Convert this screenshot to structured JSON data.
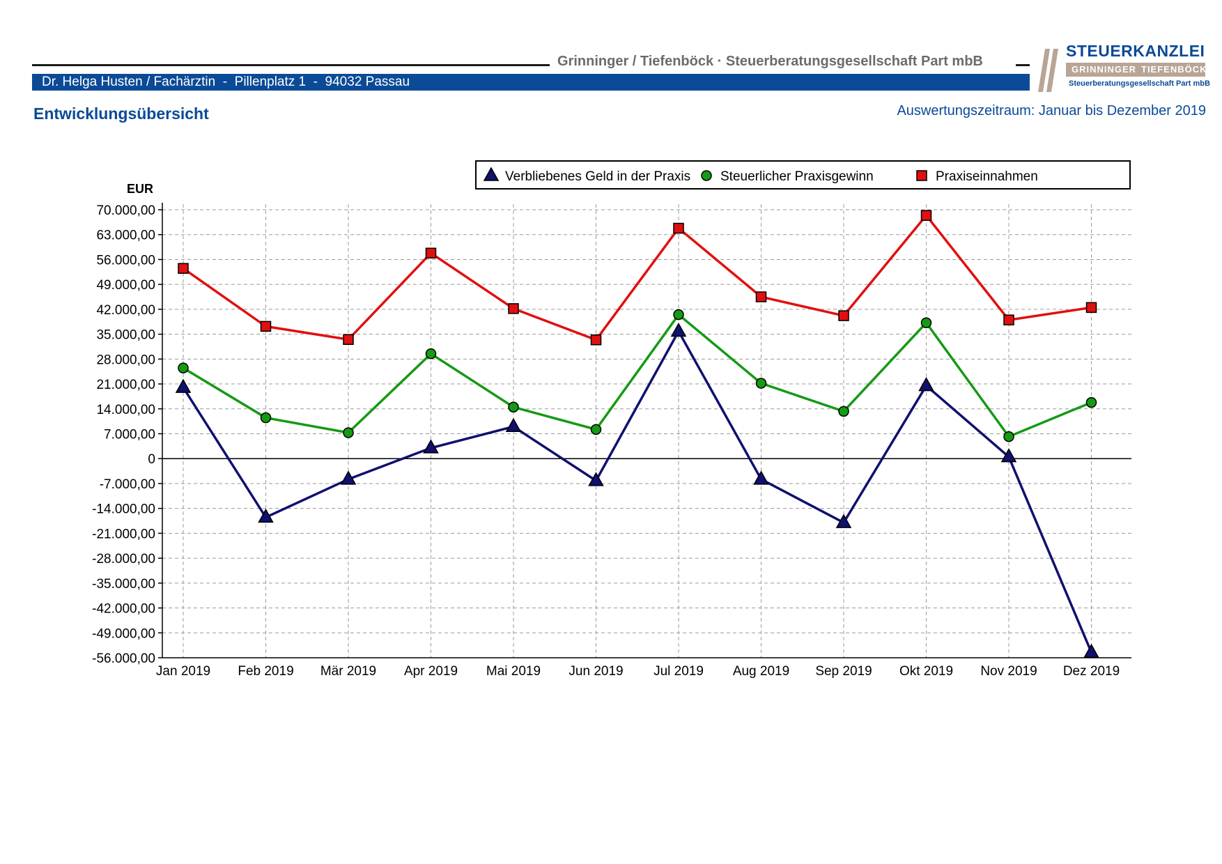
{
  "header": {
    "firm": "Grinninger / Tiefenböck · Steuerberatungsgesellschaft Part mbB",
    "client": "Dr. Helga Husten / Fachärztin  -  Pillenplatz 1  -  94032 Passau",
    "logo_title": "STEUERKANZLEI",
    "logo_name_left": "GRINNINGER",
    "logo_name_right": "TIEFENBÖCK",
    "logo_sub": "Steuerberatungsgesellschaft Part mbB"
  },
  "page": {
    "title": "Entwicklungsübersicht",
    "period": "Auswertungszeitraum: Januar bis Dezember 2019"
  },
  "chart_data": {
    "type": "line",
    "ylabel": "EUR",
    "ylim": [
      -56000,
      70000
    ],
    "yticks": [
      70000,
      63000,
      56000,
      49000,
      42000,
      35000,
      28000,
      21000,
      14000,
      7000,
      0,
      -7000,
      -14000,
      -21000,
      -28000,
      -35000,
      -42000,
      -49000,
      -56000
    ],
    "ytick_labels": [
      "70.000,00",
      "63.000,00",
      "56.000,00",
      "49.000,00",
      "42.000,00",
      "35.000,00",
      "28.000,00",
      "21.000,00",
      "14.000,00",
      "7.000,00",
      "0",
      "-7.000,00",
      "-14.000,00",
      "-21.000,00",
      "-28.000,00",
      "-35.000,00",
      "-42.000,00",
      "-49.000,00",
      "-56.000,00"
    ],
    "categories": [
      "Jan 2019",
      "Feb 2019",
      "Mär 2019",
      "Apr 2019",
      "Mai 2019",
      "Jun 2019",
      "Jul 2019",
      "Aug 2019",
      "Sep 2019",
      "Okt 2019",
      "Nov 2019",
      "Dez 2019"
    ],
    "grid": true,
    "legend_position": "top-right",
    "series": [
      {
        "name": "Verbliebenes Geld in der Praxis",
        "color": "#101070",
        "marker": "triangle",
        "values": [
          20000,
          -16500,
          -5800,
          3000,
          9000,
          -6200,
          35800,
          -5800,
          -18000,
          20500,
          500,
          -54500
        ]
      },
      {
        "name": "Steuerlicher Praxisgewinn",
        "color": "#159a15",
        "marker": "circle",
        "values": [
          25500,
          11500,
          7300,
          29500,
          14500,
          8200,
          40500,
          21200,
          13300,
          38200,
          6200,
          15800
        ]
      },
      {
        "name": "Praxiseinnahmen",
        "color": "#e01010",
        "marker": "square",
        "values": [
          53500,
          37200,
          33500,
          57800,
          42200,
          33400,
          64800,
          45500,
          40200,
          68400,
          39000,
          42500
        ]
      }
    ]
  }
}
